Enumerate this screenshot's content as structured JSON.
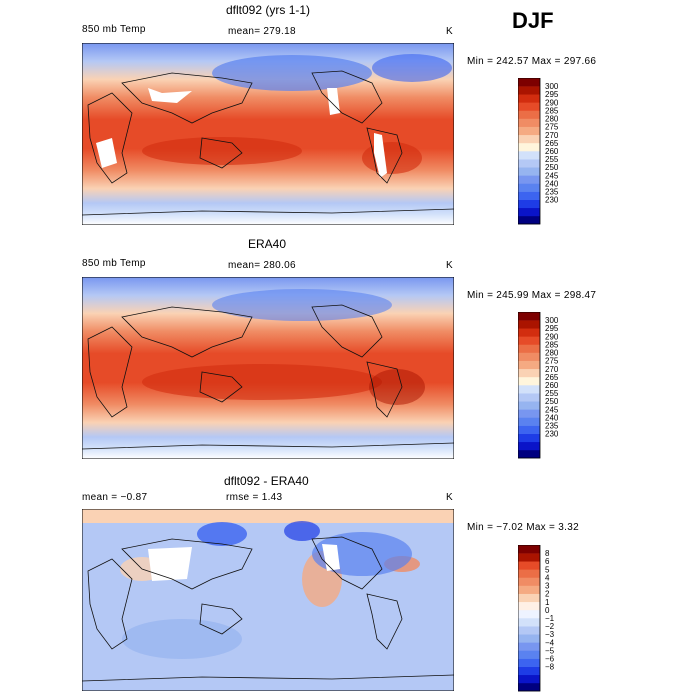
{
  "season": "DJF",
  "colors": {
    "temp": [
      "#000080",
      "#0a14c8",
      "#1e3ce6",
      "#3c64f0",
      "#5a82f0",
      "#7896f0",
      "#96b4f0",
      "#b4c8f5",
      "#d2e1fa",
      "#fff5dc",
      "#fad2b4",
      "#f5aa82",
      "#f08c64",
      "#eb6e46",
      "#e64b28",
      "#d22d0f",
      "#aa1400",
      "#7d0000"
    ],
    "diff": [
      "#000080",
      "#0a14c8",
      "#1e3ce6",
      "#3c64f0",
      "#5a82f0",
      "#7896f0",
      "#96b4f0",
      "#b4c8f5",
      "#d2e1fa",
      "#eef3ff",
      "#fff0e6",
      "#fad2b4",
      "#f5aa82",
      "#f08c64",
      "#eb6e46",
      "#e64b28",
      "#aa1400",
      "#7d0000"
    ],
    "land": "#ffffff"
  },
  "chart_data": [
    {
      "type": "heatmap",
      "title": "dflt092 (yrs 1-1)",
      "variable": "850 mb Temp",
      "stat_label": "mean= 279.18",
      "units": "K",
      "range_label": "Min = 242.57 Max = 297.66",
      "min": 242.57,
      "max": 297.66,
      "colorbar_levels": [
        "300",
        "295",
        "290",
        "285",
        "280",
        "275",
        "270",
        "265",
        "260",
        "255",
        "250",
        "245",
        "240",
        "235",
        "230"
      ],
      "palette": "temp"
    },
    {
      "type": "heatmap",
      "title": "ERA40",
      "variable": "850 mb Temp",
      "stat_label": "mean= 280.06",
      "units": "K",
      "range_label": "Min = 245.99 Max = 298.47",
      "min": 245.99,
      "max": 298.47,
      "colorbar_levels": [
        "300",
        "295",
        "290",
        "285",
        "280",
        "275",
        "270",
        "265",
        "260",
        "255",
        "250",
        "245",
        "240",
        "235",
        "230"
      ],
      "palette": "temp"
    },
    {
      "type": "heatmap",
      "title": "dflt092 - ERA40",
      "variable": "mean =  −0.87",
      "stat_label": "rmse =    1.43",
      "units": "K",
      "range_label": "Min =  −7.02 Max =    3.32",
      "min": -7.02,
      "max": 3.32,
      "colorbar_levels": [
        "8",
        "6",
        "5",
        "4",
        "3",
        "2",
        "1",
        "0",
        "−1",
        "−2",
        "−3",
        "−4",
        "−5",
        "−6",
        "−8"
      ],
      "palette": "diff"
    }
  ]
}
